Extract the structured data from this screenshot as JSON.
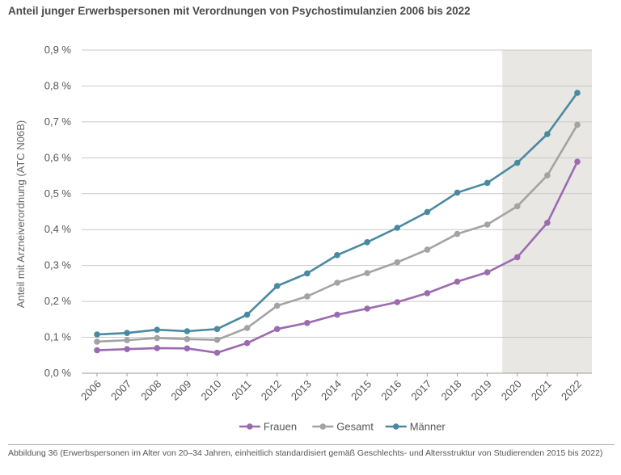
{
  "title": "Anteil junger Erwerbspersonen mit Verordnungen von Psychostimulanzien 2006 bis 2022",
  "caption": "Abbildung 36 (Erwerbspersonen im Alter von 20–34 Jahren, einheitlich standardisiert gemäß Geschlechts- und Altersstruktur von Studierenden 2015 bis 2022)",
  "chart_data": {
    "type": "line",
    "title": "Anteil junger Erwerbspersonen mit Verordnungen von Psychostimulanzien 2006 bis 2022",
    "ylabel": "Anteil mit Arzneiverordnung (ATC N06B)",
    "xlabel": "",
    "ylim": [
      0,
      0.9
    ],
    "yticks": [
      "0,0 %",
      "0,1 %",
      "0,2 %",
      "0,3 %",
      "0,4 %",
      "0,5 %",
      "0,6 %",
      "0,7 %",
      "0,8 %",
      "0,9 %"
    ],
    "x": [
      "2006",
      "2007",
      "2008",
      "2009",
      "2010",
      "2011",
      "2012",
      "2013",
      "2014",
      "2015",
      "2016",
      "2017",
      "2018",
      "2019",
      "2020",
      "2021",
      "2022"
    ],
    "highlight_range": [
      "2020",
      "2022"
    ],
    "grid": "horizontal",
    "legend_position": "bottom",
    "series": [
      {
        "name": "Frauen",
        "color": "#9b6bb0",
        "values": [
          0.064,
          0.067,
          0.07,
          0.069,
          0.057,
          0.084,
          0.123,
          0.14,
          0.163,
          0.18,
          0.198,
          0.223,
          0.255,
          0.281,
          0.323,
          0.419,
          0.589
        ]
      },
      {
        "name": "Gesamt",
        "color": "#a3a3a3",
        "values": [
          0.088,
          0.092,
          0.098,
          0.095,
          0.093,
          0.126,
          0.188,
          0.214,
          0.252,
          0.279,
          0.309,
          0.344,
          0.388,
          0.414,
          0.465,
          0.551,
          0.692
        ]
      },
      {
        "name": "Männer",
        "color": "#4a8aa0",
        "values": [
          0.108,
          0.112,
          0.121,
          0.117,
          0.123,
          0.163,
          0.243,
          0.278,
          0.329,
          0.365,
          0.405,
          0.449,
          0.503,
          0.53,
          0.586,
          0.666,
          0.781
        ]
      }
    ]
  }
}
